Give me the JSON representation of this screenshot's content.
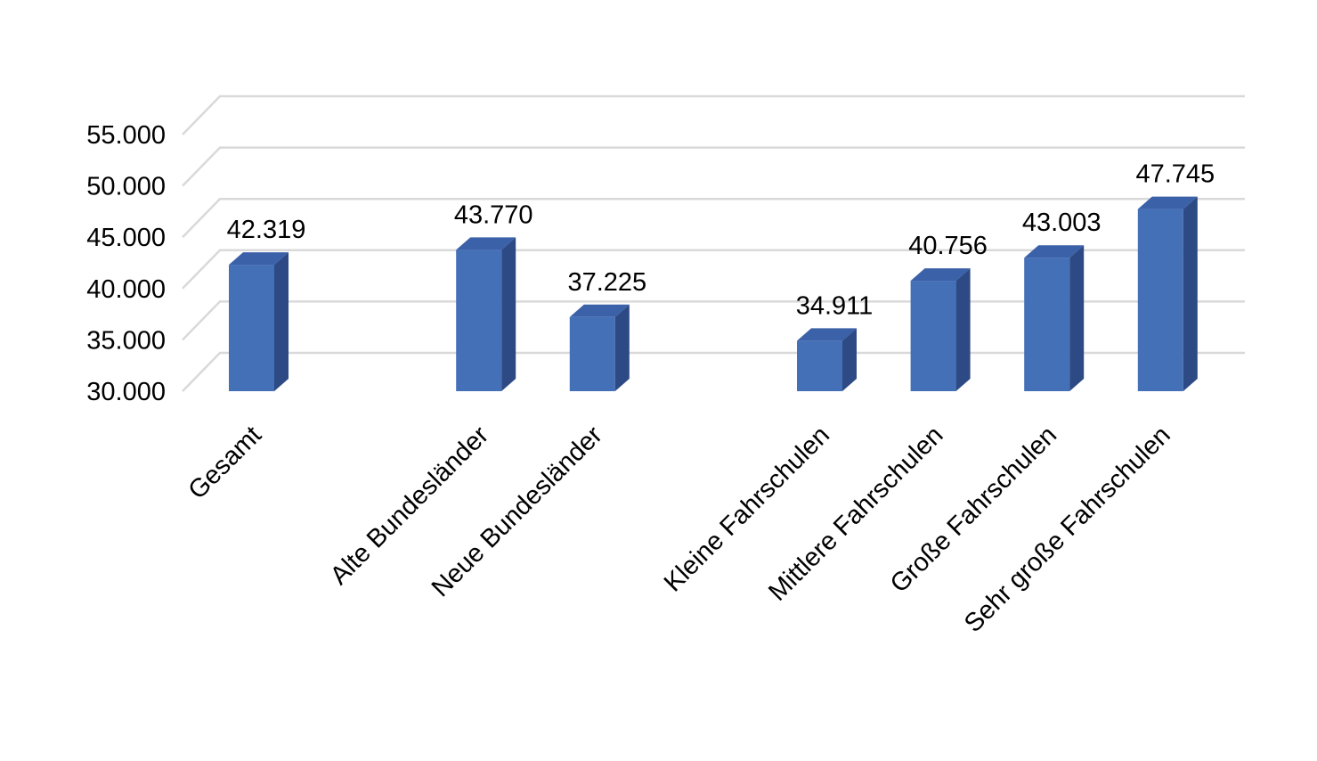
{
  "chart_data": {
    "type": "bar",
    "categories": [
      "Gesamt",
      "",
      "Alte Bundesländer",
      "Neue Bundesländer",
      "",
      "Kleine Fahrschulen",
      "Mittlere Fahrschulen",
      "Große Fahrschulen",
      "Sehr große Fahrschulen"
    ],
    "values": [
      42319,
      null,
      43770,
      37225,
      null,
      34911,
      40756,
      43003,
      47745
    ],
    "value_labels": [
      "42.319",
      "",
      "43.770",
      "37.225",
      "",
      "34.911",
      "40.756",
      "43.003",
      "47.745"
    ],
    "y_ticks": [
      30000,
      35000,
      40000,
      45000,
      50000,
      55000
    ],
    "y_tick_labels": [
      "30.000",
      "35.000",
      "40.000",
      "45.000",
      "50.000",
      "55.000"
    ],
    "ylim": [
      30000,
      57000
    ],
    "title": "",
    "xlabel": "",
    "ylabel": "",
    "grid": true,
    "legend": "none",
    "style": "3d-column",
    "colors": {
      "bar_front": "#4470B8",
      "bar_top": "#3B61A8",
      "bar_side": "#2D4A85",
      "grid": "#D9D9D9"
    }
  }
}
